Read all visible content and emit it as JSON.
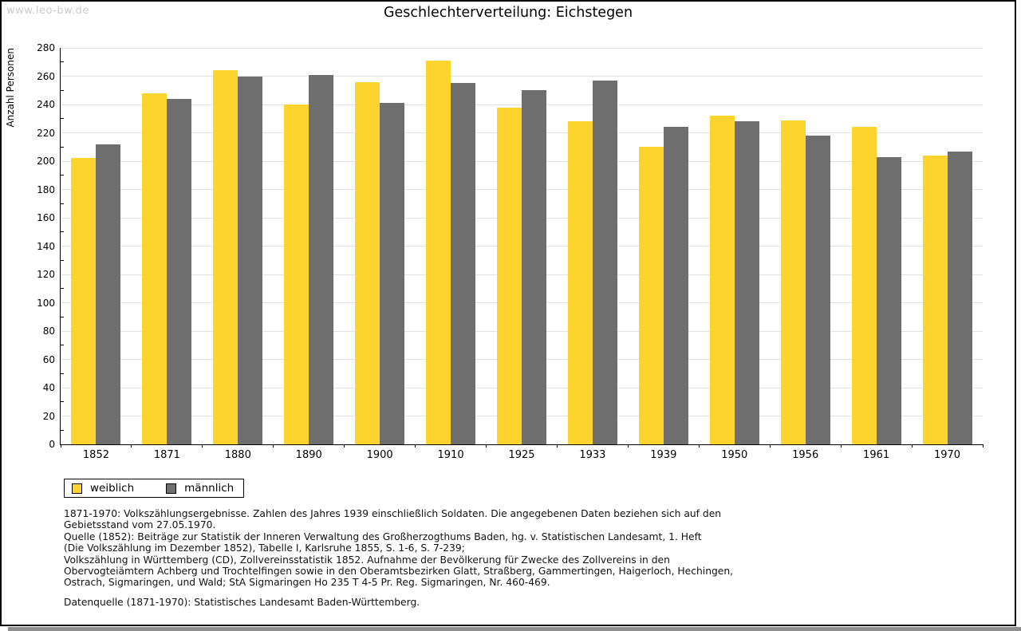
{
  "watermark": "www.leo-bw.de",
  "title": "Geschlechterverteilung: Eichstegen",
  "chart_data": {
    "type": "bar",
    "title": "Geschlechterverteilung: Eichstegen",
    "xlabel": "",
    "ylabel": "Anzahl Personen",
    "ylim": [
      0,
      280
    ],
    "ytick_step": 20,
    "minor_tick_step": 10,
    "grid": true,
    "legend_position": "bottom-left",
    "categories": [
      "1852",
      "1871",
      "1880",
      "1890",
      "1900",
      "1910",
      "1925",
      "1933",
      "1939",
      "1950",
      "1956",
      "1961",
      "1970"
    ],
    "series": [
      {
        "name": "weiblich",
        "color": "#FCD42D",
        "values": [
          202,
          248,
          264,
          240,
          256,
          271,
          238,
          228,
          210,
          232,
          229,
          224,
          204
        ]
      },
      {
        "name": "männlich",
        "color": "#6E6E6E",
        "values": [
          212,
          244,
          260,
          261,
          241,
          255,
          250,
          257,
          224,
          228,
          218,
          203,
          207
        ]
      }
    ]
  },
  "legend": {
    "items": [
      {
        "label": "weiblich",
        "color": "#FCD42D"
      },
      {
        "label": "männlich",
        "color": "#6E6E6E"
      }
    ]
  },
  "notes": {
    "lines": [
      "1871-1970: Volkszählungsergebnisse. Zahlen des Jahres 1939 einschließlich Soldaten. Die angegebenen Daten beziehen sich auf den",
      "Gebietsstand vom 27.05.1970.",
      "Quelle (1852): Beiträge zur Statistik der Inneren Verwaltung des Großherzogthums Baden, hg. v. Statistischen Landesamt, 1. Heft",
      "(Die Volkszählung im Dezember 1852), Tabelle I, Karlsruhe 1855, S. 1-6, S. 7-239;",
      "Volkszählung in Württemberg (CD), Zollvereinsstatistik 1852. Aufnahme der Bevölkerung für Zwecke des Zollvereins in den",
      "Obervogteiämtern Achberg und Trochtelfingen sowie in den Oberamtsbezirken Glatt, Straßberg, Gammertingen, Haigerloch, Hechingen,",
      "Ostrach, Sigmaringen, und Wald; StA Sigmaringen Ho 235 T 4-5 Pr. Reg. Sigmaringen, Nr. 460-469."
    ],
    "datasource": "Datenquelle (1871-1970): Statistisches Landesamt Baden-Württemberg."
  },
  "colors": {
    "weiblich": "#FCD42D",
    "männlich": "#6E6E6E",
    "gridline": "#E0E0E0",
    "axis": "#000000",
    "watermark": "#CCCCCC",
    "shadow": "#8F8F8F"
  }
}
